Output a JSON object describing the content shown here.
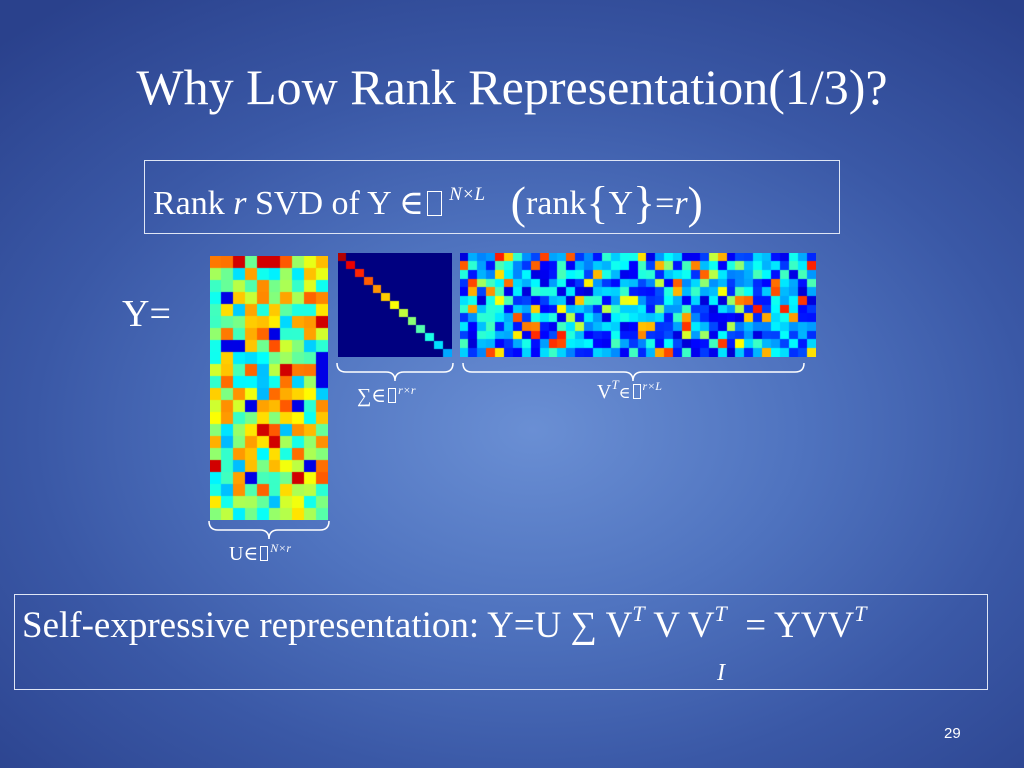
{
  "title": "Why Low Rank Representation(1/3)?",
  "svd_definition": {
    "rank_word": "Rank",
    "r": "r",
    "svd_of": "SVD of Y",
    "element_of": "∈",
    "dims": "N×L",
    "lparen": "(",
    "rank_func": "rank",
    "lbrace": "{",
    "Y": "Y",
    "rbrace": "}",
    "equals": "=",
    "r2": "r",
    "rparen": ")"
  },
  "y_equals": "Y=",
  "labels": {
    "u": {
      "symbol": "U∈",
      "dims": "N×r"
    },
    "sigma": {
      "symbol": "∑∈",
      "dims": "r×r"
    },
    "vt": {
      "symbol": "V",
      "transpose": "T",
      "element_of": "∈",
      "dims": "r×L"
    }
  },
  "self_expressive": {
    "prefix": "Self-expressive representation: Y=U",
    "sigma": "∑",
    "v": "V",
    "t1": "T",
    "vv": "V V",
    "t2": "T",
    "equals": " = YVV",
    "t3": "T",
    "identity": "I"
  },
  "page_number": "29"
}
